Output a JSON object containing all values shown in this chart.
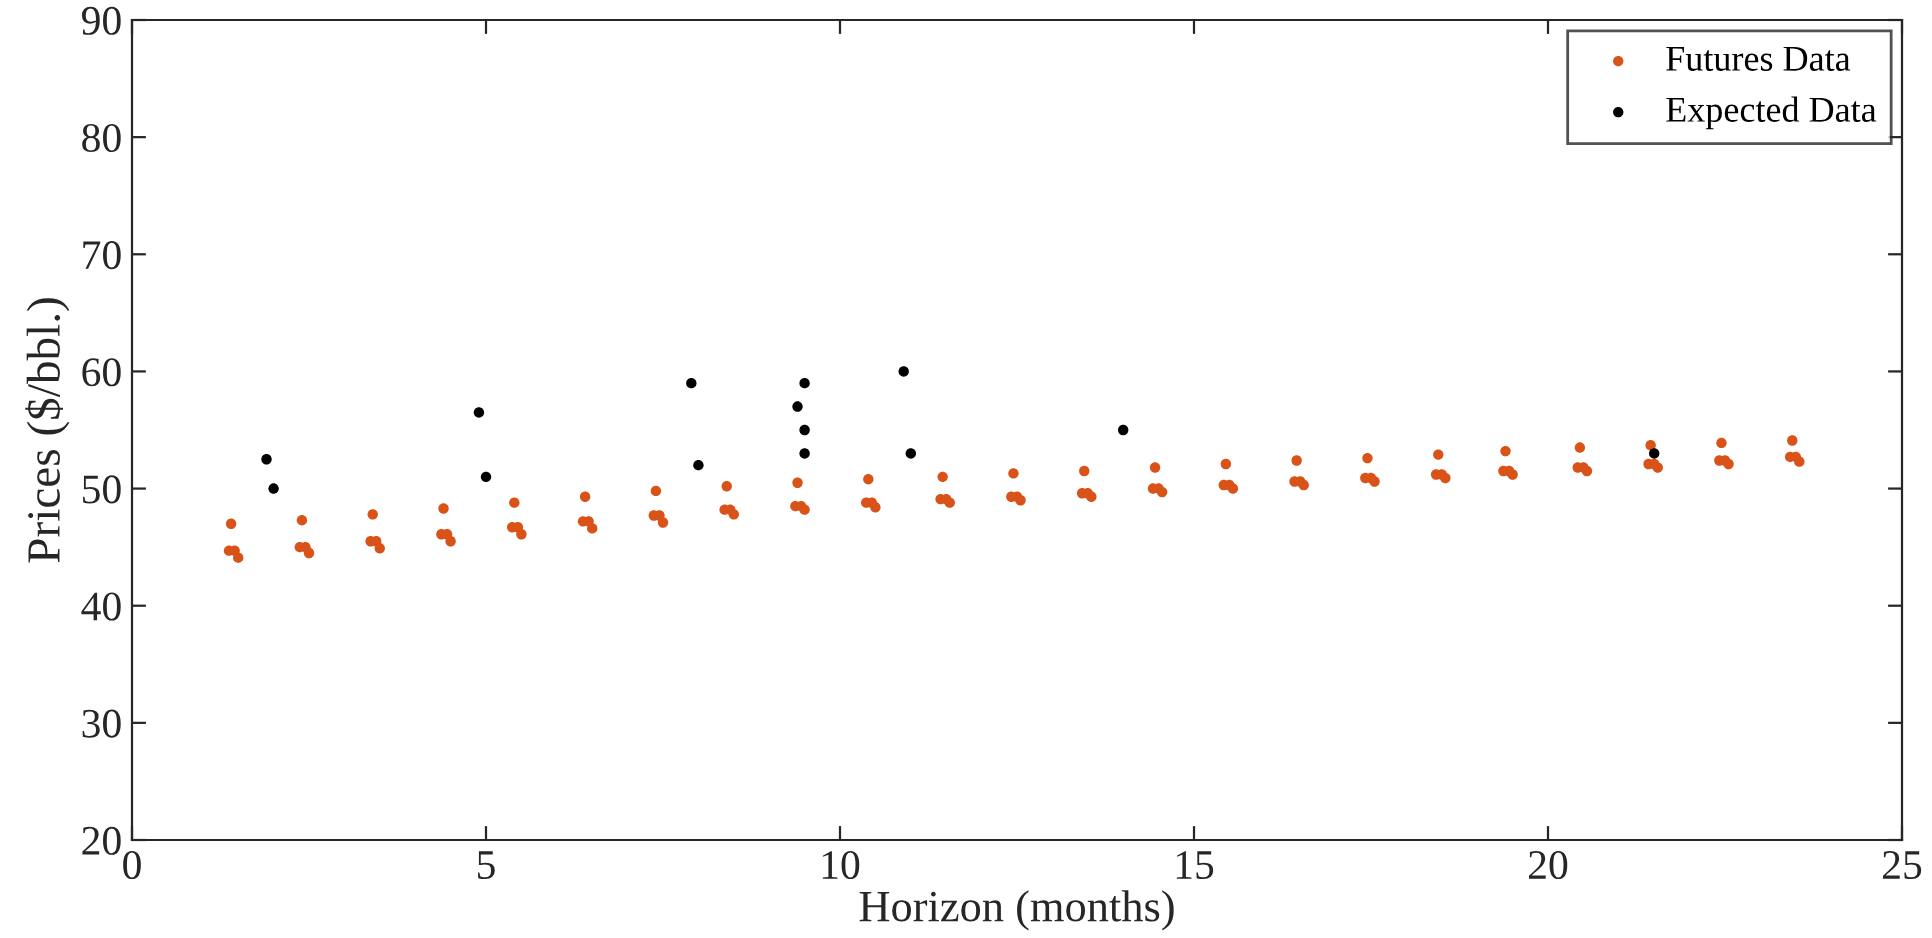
{
  "chart_data": {
    "type": "scatter",
    "xlabel": "Horizon (months)",
    "ylabel": "Prices ($/bbl.)",
    "xlim": [
      0,
      25
    ],
    "ylim": [
      20,
      90
    ],
    "xticks": [
      0,
      5,
      10,
      15,
      20,
      25
    ],
    "yticks": [
      20,
      30,
      40,
      50,
      60,
      70,
      80,
      90
    ],
    "grid": false,
    "legend": "top right",
    "marker": "circle",
    "series": [
      {
        "name": "Futures Data",
        "color": "#d95319",
        "x": [
          1.4,
          1.37,
          1.45,
          1.5,
          2.4,
          2.37,
          2.45,
          2.5,
          3.4,
          3.37,
          3.45,
          3.5,
          4.4,
          4.37,
          4.45,
          4.5,
          5.4,
          5.37,
          5.45,
          5.5,
          6.4,
          6.37,
          6.45,
          6.5,
          7.4,
          7.37,
          7.45,
          7.5,
          8.4,
          8.37,
          8.45,
          8.5,
          9.4,
          9.37,
          9.45,
          9.5,
          10.4,
          10.37,
          10.45,
          10.5,
          11.45,
          11.42,
          11.5,
          11.55,
          12.45,
          12.42,
          12.5,
          12.55,
          13.45,
          13.42,
          13.5,
          13.55,
          14.45,
          14.42,
          14.5,
          14.55,
          15.45,
          15.42,
          15.5,
          15.55,
          16.45,
          16.42,
          16.5,
          16.55,
          17.45,
          17.42,
          17.5,
          17.55,
          18.45,
          18.42,
          18.5,
          18.55,
          19.4,
          19.37,
          19.45,
          19.5,
          20.45,
          20.42,
          20.5,
          20.55,
          21.45,
          21.42,
          21.5,
          21.55,
          22.45,
          22.42,
          22.5,
          22.55,
          23.45,
          23.42,
          23.5,
          23.55
        ],
        "values": [
          47.0,
          44.7,
          44.7,
          44.1,
          47.3,
          45.0,
          45.0,
          44.5,
          47.8,
          45.5,
          45.5,
          44.9,
          48.3,
          46.1,
          46.1,
          45.5,
          48.8,
          46.7,
          46.7,
          46.1,
          49.3,
          47.2,
          47.2,
          46.6,
          49.8,
          47.7,
          47.7,
          47.1,
          50.2,
          48.2,
          48.2,
          47.8,
          50.5,
          48.5,
          48.5,
          48.2,
          50.8,
          48.8,
          48.8,
          48.4,
          51.0,
          49.1,
          49.1,
          48.8,
          51.3,
          49.3,
          49.3,
          49.0,
          51.5,
          49.6,
          49.6,
          49.3,
          51.8,
          50.0,
          50.0,
          49.7,
          52.1,
          50.3,
          50.3,
          50.0,
          52.4,
          50.6,
          50.6,
          50.3,
          52.6,
          50.9,
          50.9,
          50.6,
          52.9,
          51.2,
          51.2,
          50.9,
          53.2,
          51.5,
          51.5,
          51.2,
          53.5,
          51.8,
          51.8,
          51.5,
          53.7,
          52.1,
          52.1,
          51.8,
          53.9,
          52.4,
          52.4,
          52.1,
          54.1,
          52.7,
          52.7,
          52.3
        ]
      },
      {
        "name": "Expected Data",
        "color": "#000000",
        "x": [
          1.9,
          2.0,
          4.9,
          5.0,
          7.9,
          8.0,
          9.4,
          9.5,
          9.5,
          9.5,
          10.9,
          11.0,
          14.0,
          21.5
        ],
        "values": [
          52.5,
          50.0,
          56.5,
          51.0,
          59.0,
          52.0,
          57.0,
          59.0,
          55.0,
          53.0,
          60.0,
          53.0,
          55.0,
          53.0
        ]
      }
    ]
  }
}
